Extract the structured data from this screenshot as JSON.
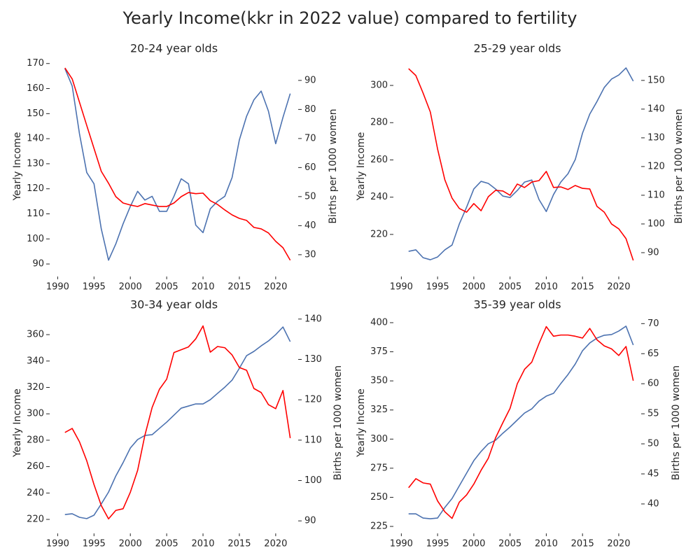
{
  "title": "Yearly Income(kkr in 2022 value) compared to fertility",
  "chart_data": [
    {
      "type": "line",
      "title": "20-24 year olds",
      "y_label": "Yearly Income",
      "y2_label": "Births per 1000 women",
      "x": [
        1991,
        1992,
        1993,
        1994,
        1995,
        1996,
        1997,
        1998,
        1999,
        2000,
        2001,
        2002,
        2003,
        2004,
        2005,
        2006,
        2007,
        2008,
        2009,
        2010,
        2011,
        2012,
        2013,
        2014,
        2015,
        2016,
        2017,
        2018,
        2019,
        2020,
        2021,
        2022
      ],
      "xlim": [
        1989,
        2023
      ],
      "xticks": [
        1990,
        1995,
        2000,
        2005,
        2010,
        2015,
        2020
      ],
      "ylim": [
        85,
        173
      ],
      "yticks": [
        90,
        100,
        110,
        120,
        130,
        140,
        150,
        160,
        170
      ],
      "y2lim": [
        22.5,
        98.4
      ],
      "y2ticks": [
        30,
        40,
        50,
        60,
        70,
        80,
        90
      ],
      "series": [
        {
          "color": "#4c72b0",
          "values": [
            168,
            161,
            142,
            126.5,
            122,
            104,
            91.5,
            98,
            106,
            113,
            119,
            115.5,
            117,
            111,
            111,
            117,
            124,
            122,
            105.5,
            102.5,
            112,
            115,
            117,
            124.5,
            139.5,
            149,
            155.5,
            159,
            151,
            138,
            148.5,
            158
          ]
        },
        {
          "color": "#ff0000",
          "axis": "y2",
          "values": [
            94.3,
            90.5,
            82.5,
            74.5,
            66.6,
            58.7,
            54.6,
            50,
            47.8,
            47.1,
            46.6,
            47.6,
            47.1,
            46.6,
            46.6,
            47.8,
            50,
            51.4,
            51,
            51.2,
            48.6,
            47.3,
            45.4,
            43.7,
            42.5,
            41.8,
            39.4,
            38.9,
            37.5,
            34.6,
            32.4,
            28.1
          ]
        }
      ]
    },
    {
      "type": "line",
      "title": "25-29 year olds",
      "y_label": "Yearly Income",
      "y2_label": "Births per 1000 women",
      "x": [
        1991,
        1992,
        1993,
        1994,
        1995,
        1996,
        1997,
        1998,
        1999,
        2000,
        2001,
        2002,
        2003,
        2004,
        2005,
        2006,
        2007,
        2008,
        2009,
        2010,
        2011,
        2012,
        2013,
        2014,
        2015,
        2016,
        2017,
        2018,
        2019,
        2020,
        2021,
        2022
      ],
      "xlim": [
        1989,
        2023
      ],
      "xticks": [
        1990,
        1995,
        2000,
        2005,
        2010,
        2015,
        2020
      ],
      "ylim": [
        197.4,
        315.8
      ],
      "yticks": [
        220,
        240,
        260,
        280,
        300
      ],
      "y2lim": [
        81.7,
        158.5
      ],
      "y2ticks": [
        90,
        100,
        110,
        120,
        130,
        140,
        150
      ],
      "series": [
        {
          "color": "#4c72b0",
          "values": [
            210.9,
            211.7,
            207.5,
            206.4,
            207.9,
            211.7,
            214.3,
            225.6,
            234.6,
            244.4,
            248.5,
            247.4,
            244.4,
            240.6,
            239.8,
            243.6,
            248.1,
            249.2,
            238.7,
            232.3,
            241.4,
            248.1,
            252.6,
            260.2,
            274.4,
            284.6,
            291.4,
            298.9,
            303.4,
            305.6,
            309.4,
            302.3
          ]
        },
        {
          "color": "#ff0000",
          "axis": "y2",
          "values": [
            154.1,
            151.7,
            145.6,
            139,
            126.1,
            115.4,
            109,
            105.4,
            104.1,
            107.1,
            104.6,
            109.5,
            111.7,
            111.5,
            110,
            113.9,
            112.7,
            114.6,
            115.1,
            118.3,
            112.7,
            112.9,
            112,
            113.4,
            112.4,
            112.2,
            106.1,
            104.1,
            100,
            98.3,
            94.9,
            87.3
          ]
        }
      ]
    },
    {
      "type": "line",
      "title": "30-34 year olds",
      "y_label": "Yearly Income",
      "y2_label": "Births per 1000 women",
      "x": [
        1991,
        1992,
        1993,
        1994,
        1995,
        1996,
        1997,
        1998,
        1999,
        2000,
        2001,
        2002,
        2003,
        2004,
        2005,
        2006,
        2007,
        2008,
        2009,
        2010,
        2011,
        2012,
        2013,
        2014,
        2015,
        2016,
        2017,
        2018,
        2019,
        2020,
        2021,
        2022
      ],
      "xlim": [
        1989,
        2023
      ],
      "xticks": [
        1990,
        1995,
        2000,
        2005,
        2010,
        2015,
        2020
      ],
      "ylim": [
        209.4,
        377
      ],
      "yticks": [
        220,
        240,
        260,
        280,
        300,
        320,
        340,
        360
      ],
      "y2lim": [
        86.9,
        141.7
      ],
      "y2ticks": [
        90,
        100,
        110,
        120,
        130,
        140
      ],
      "series": [
        {
          "color": "#4c72b0",
          "values": [
            223.7,
            224.3,
            221.6,
            220.6,
            223.2,
            231.7,
            240.7,
            252.9,
            263,
            274.1,
            280.5,
            283.6,
            284.2,
            289,
            293.7,
            299,
            304.3,
            305.9,
            307.5,
            307.5,
            310.7,
            315.5,
            320.2,
            325.5,
            334.5,
            344.1,
            347.3,
            351.5,
            355.2,
            360,
            365.8,
            354.7
          ]
        },
        {
          "color": "#ff0000",
          "axis": "y2",
          "values": [
            111.9,
            112.9,
            109.6,
            104.9,
            99,
            93.8,
            90.5,
            92.6,
            93,
            97.1,
            102.5,
            111.2,
            118.1,
            122.6,
            125.1,
            131.7,
            132.4,
            133.1,
            135.1,
            138.3,
            131.8,
            133.2,
            132.9,
            131.1,
            128,
            127.3,
            122.8,
            121.8,
            118.8,
            117.8,
            122.3,
            110.5
          ]
        }
      ]
    },
    {
      "type": "line",
      "title": "35-39 year olds",
      "y_label": "Yearly Income",
      "y2_label": "Births per 1000 women",
      "x": [
        1991,
        1992,
        1993,
        1994,
        1995,
        1996,
        1997,
        1998,
        1999,
        2000,
        2001,
        2002,
        2003,
        2004,
        2005,
        2006,
        2007,
        2008,
        2009,
        2010,
        2011,
        2012,
        2013,
        2014,
        2015,
        2016,
        2017,
        2018,
        2019,
        2020,
        2021,
        2022
      ],
      "xlim": [
        1989,
        2023
      ],
      "xticks": [
        1990,
        1995,
        2000,
        2005,
        2010,
        2015,
        2020
      ],
      "ylim": [
        219,
        409
      ],
      "yticks": [
        225,
        250,
        275,
        300,
        325,
        350,
        375,
        400
      ],
      "y2lim": [
        35.1,
        71.9
      ],
      "y2ticks": [
        40,
        45,
        50,
        55,
        60,
        65,
        70
      ],
      "series": [
        {
          "color": "#4c72b0",
          "values": [
            235.8,
            235.8,
            232.2,
            231.6,
            232.2,
            241.3,
            249,
            259.9,
            270.7,
            281.5,
            289.4,
            296,
            299,
            305,
            310.4,
            316.4,
            322.4,
            326,
            332.7,
            336.9,
            339.3,
            347.7,
            355.5,
            364.5,
            375.9,
            382.6,
            386.8,
            389.2,
            389.8,
            392.8,
            397,
            380.8
          ]
        },
        {
          "color": "#ff0000",
          "axis": "y2",
          "values": [
            42.7,
            44.2,
            43.5,
            43.3,
            40.5,
            38.7,
            37.6,
            40.3,
            41.5,
            43.3,
            45.6,
            47.6,
            51,
            53.5,
            55.9,
            60,
            62.4,
            63.6,
            66.7,
            69.5,
            67.9,
            68.1,
            68.1,
            67.9,
            67.6,
            69.2,
            67.3,
            66.3,
            65.8,
            64.7,
            66.2,
            60.5
          ]
        }
      ]
    }
  ]
}
